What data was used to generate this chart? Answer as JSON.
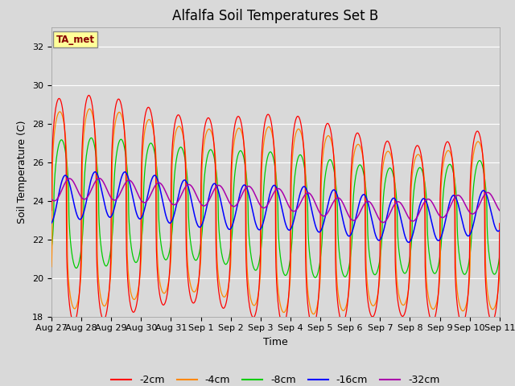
{
  "title": "Alfalfa Soil Temperatures Set B",
  "xlabel": "Time",
  "ylabel": "Soil Temperature (C)",
  "ylim": [
    18,
    33
  ],
  "yticks": [
    18,
    20,
    22,
    24,
    26,
    28,
    30,
    32
  ],
  "x_tick_labels": [
    "Aug 27",
    "Aug 28",
    "Aug 29",
    "Aug 30",
    "Aug 31",
    "Sep 1",
    "Sep 2",
    "Sep 3",
    "Sep 4",
    "Sep 5",
    "Sep 6",
    "Sep 7",
    "Sep 8",
    "Sep 9",
    "Sep 10",
    "Sep 11"
  ],
  "colors": {
    "-2cm": "#ff0000",
    "-4cm": "#ff8800",
    "-8cm": "#00cc00",
    "-16cm": "#0000ff",
    "-32cm": "#aa00aa"
  },
  "legend_labels": [
    "-2cm",
    "-4cm",
    "-8cm",
    "-16cm",
    "-32cm"
  ],
  "ta_met_box_color": "#ffff99",
  "ta_met_text_color": "#880000",
  "bg_color": "#d9d9d9",
  "plot_bg_color": "#d9d9d9",
  "grid_color": "#ffffff",
  "title_fontsize": 12,
  "axis_label_fontsize": 9,
  "tick_fontsize": 8,
  "n_days": 15,
  "pts_per_day": 96
}
